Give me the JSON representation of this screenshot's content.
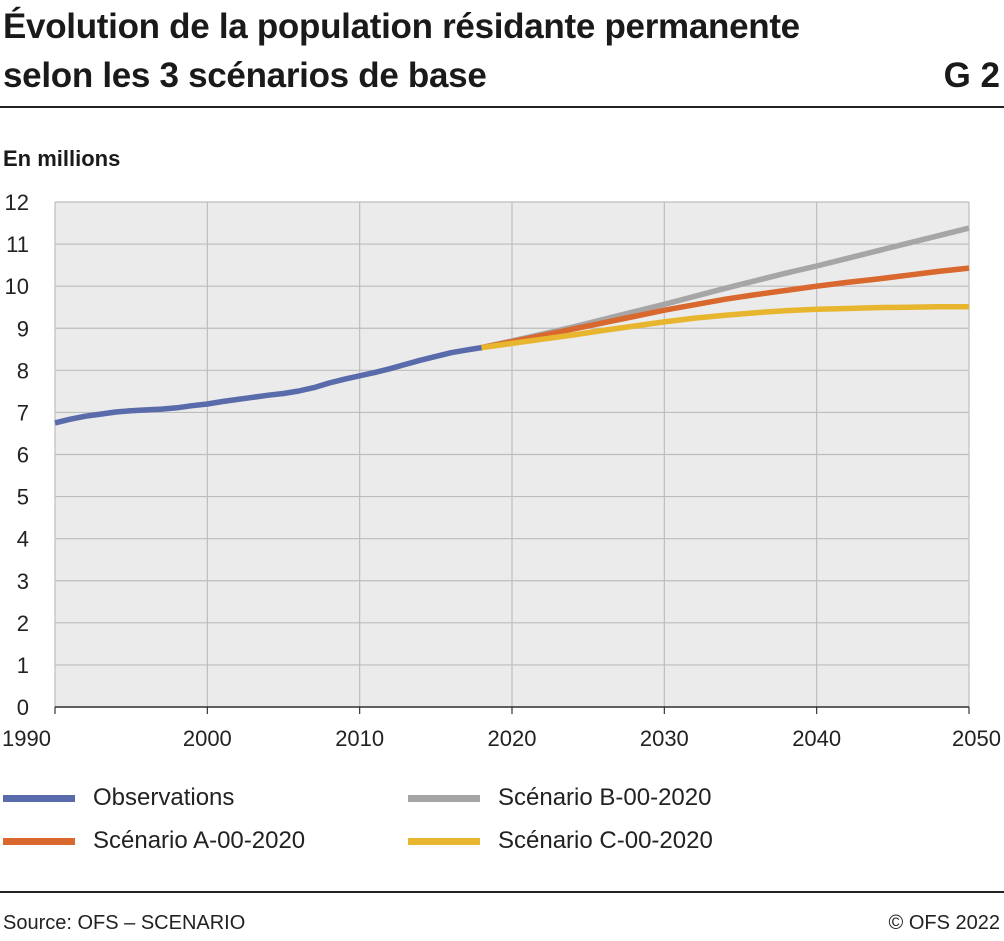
{
  "header": {
    "title_line1": "Évolution de la population résidante permanente",
    "title_line2": "selon les 3 scénarios de base",
    "graph_number": "G 2"
  },
  "footer": {
    "source": "Source: OFS – SCENARIO",
    "copyright": "© OFS 2022"
  },
  "chart_data": {
    "type": "line",
    "ylabel": "En millions",
    "xlim": [
      1990,
      2050
    ],
    "ylim": [
      0,
      12
    ],
    "x_ticks": [
      1990,
      2000,
      2010,
      2020,
      2030,
      2040,
      2050
    ],
    "y_ticks": [
      0,
      1,
      2,
      3,
      4,
      5,
      6,
      7,
      8,
      9,
      10,
      11,
      12
    ],
    "grid": true,
    "legend_position": "bottom",
    "background_color": "#ebebeb",
    "series": [
      {
        "name": "Observations",
        "color": "#5a6bab",
        "x": [
          1990,
          1991,
          1992,
          1993,
          1994,
          1995,
          1996,
          1997,
          1998,
          1999,
          2000,
          2001,
          2002,
          2003,
          2004,
          2005,
          2006,
          2007,
          2008,
          2009,
          2010,
          2011,
          2012,
          2013,
          2014,
          2015,
          2016,
          2017,
          2018
        ],
        "values": [
          6.75,
          6.84,
          6.91,
          6.96,
          7.01,
          7.04,
          7.06,
          7.08,
          7.11,
          7.16,
          7.2,
          7.26,
          7.31,
          7.36,
          7.41,
          7.45,
          7.51,
          7.59,
          7.7,
          7.79,
          7.87,
          7.95,
          8.04,
          8.14,
          8.24,
          8.33,
          8.42,
          8.48,
          8.54
        ]
      },
      {
        "name": "Scénario A-00-2020",
        "color": "#d9682e",
        "x": [
          2018,
          2020,
          2022,
          2024,
          2026,
          2028,
          2030,
          2032,
          2034,
          2036,
          2038,
          2040,
          2042,
          2044,
          2046,
          2048,
          2050
        ],
        "values": [
          8.54,
          8.68,
          8.83,
          8.98,
          9.13,
          9.28,
          9.43,
          9.56,
          9.69,
          9.8,
          9.9,
          10.0,
          10.09,
          10.17,
          10.26,
          10.35,
          10.43
        ]
      },
      {
        "name": "Scénario B-00-2020",
        "color": "#a6a6a6",
        "x": [
          2018,
          2020,
          2022,
          2024,
          2026,
          2028,
          2030,
          2032,
          2034,
          2036,
          2038,
          2040,
          2042,
          2044,
          2046,
          2048,
          2050
        ],
        "values": [
          8.54,
          8.7,
          8.86,
          9.03,
          9.21,
          9.39,
          9.57,
          9.76,
          9.95,
          10.13,
          10.31,
          10.48,
          10.66,
          10.84,
          11.02,
          11.2,
          11.38
        ]
      },
      {
        "name": "Scénario C-00-2020",
        "color": "#e8b52e",
        "x": [
          2018,
          2020,
          2022,
          2024,
          2026,
          2028,
          2030,
          2032,
          2034,
          2036,
          2038,
          2040,
          2042,
          2044,
          2046,
          2048,
          2050
        ],
        "values": [
          8.54,
          8.64,
          8.74,
          8.84,
          8.95,
          9.05,
          9.15,
          9.24,
          9.31,
          9.37,
          9.42,
          9.45,
          9.47,
          9.49,
          9.5,
          9.51,
          9.51
        ]
      }
    ]
  }
}
